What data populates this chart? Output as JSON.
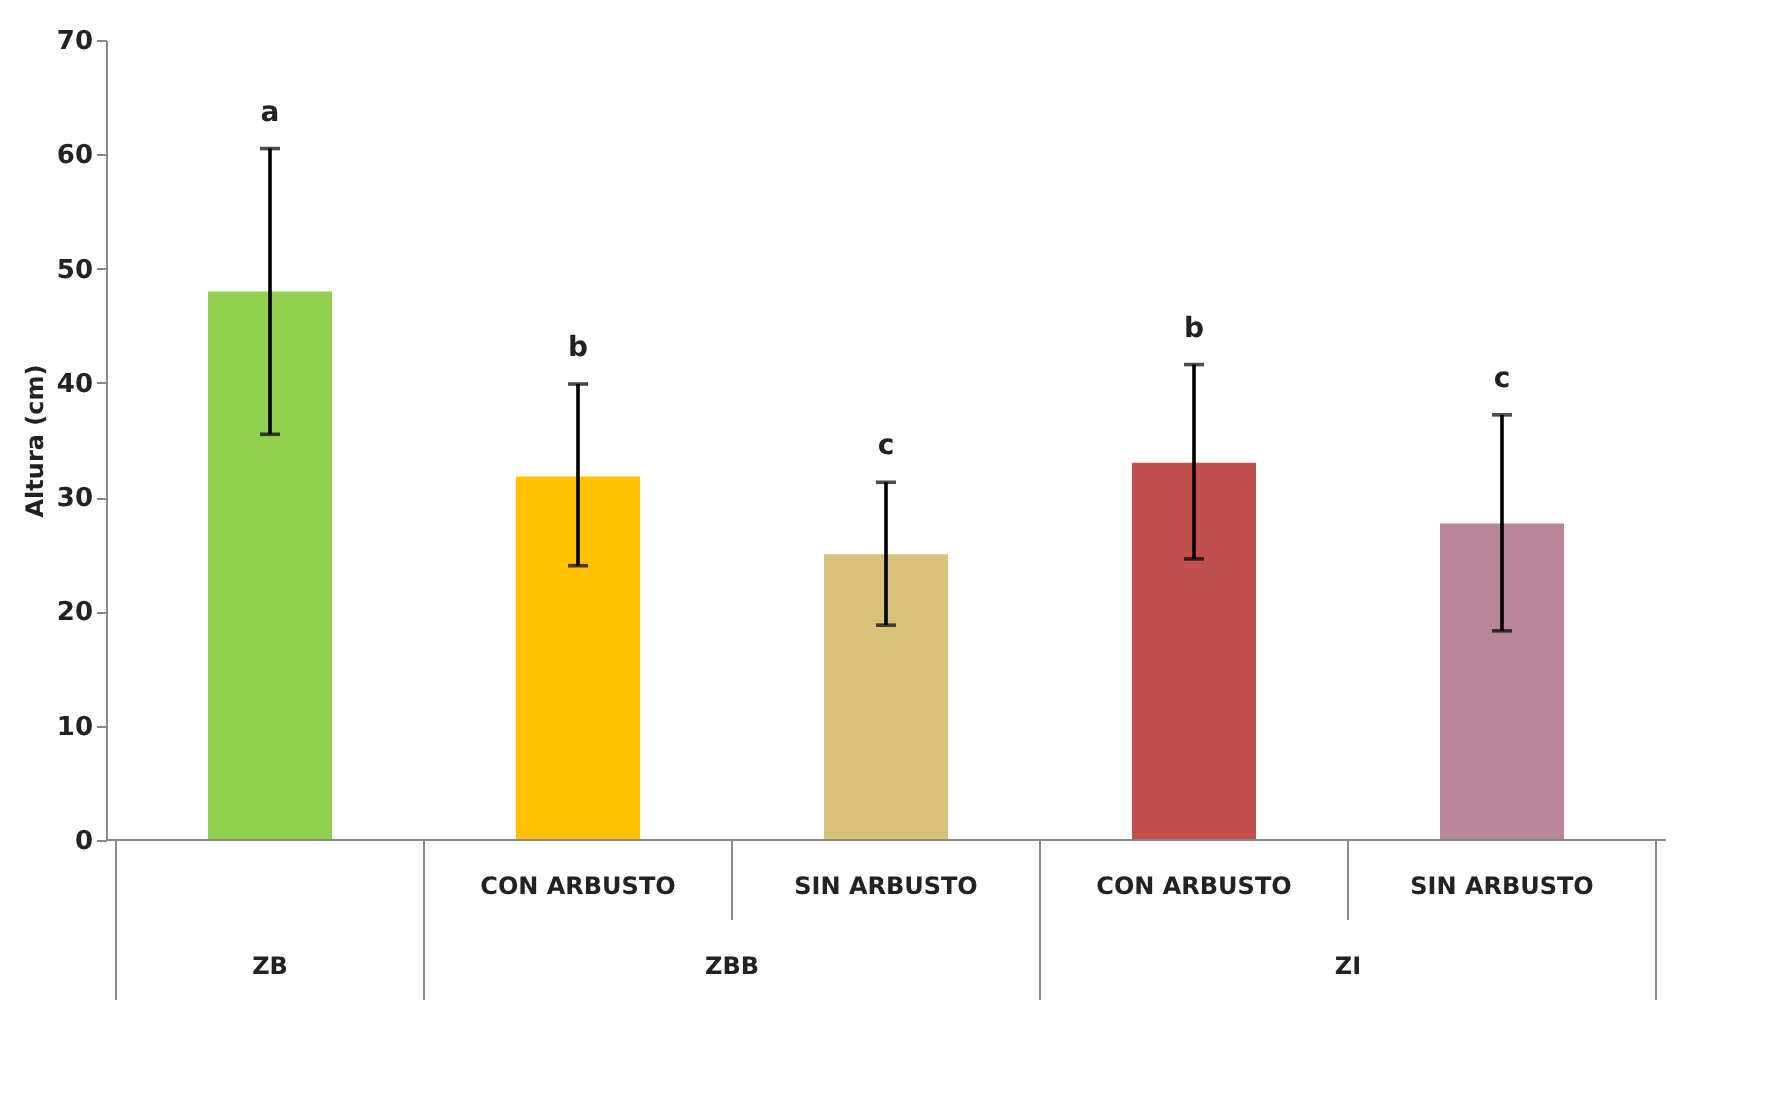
{
  "chart_data": {
    "type": "bar",
    "ylabel": "Altura (cm)",
    "categories": [
      null,
      "CON ARBUSTO",
      "SIN ARBUSTO",
      "CON ARBUSTO",
      "SIN ARBUSTO"
    ],
    "values": [
      48,
      31.8,
      25,
      33,
      27.7
    ],
    "colors": [
      "#92d050",
      "#ffc000",
      "#d8c27a",
      "#c0504d",
      "#b8889a"
    ],
    "errors": [
      [
        35.5,
        60.5
      ],
      [
        24,
        39.9
      ],
      [
        18.8,
        31.3
      ],
      [
        24.6,
        41.6
      ],
      [
        18.3,
        37.2
      ]
    ],
    "annotations": [
      "ZB",
      "ZBB",
      "ZI",
      "a",
      "b",
      "c",
      "b",
      "c"
    ],
    "ylim": [
      0,
      70
    ],
    "yticks": [
      0,
      10,
      20,
      30,
      40,
      50,
      60,
      70
    ],
    "grid": false
  }
}
